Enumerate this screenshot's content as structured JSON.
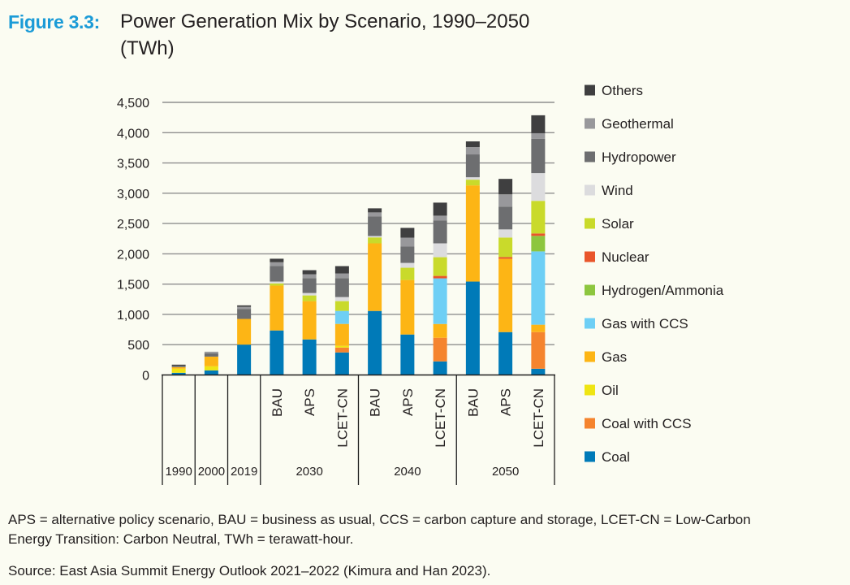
{
  "figure": {
    "label": "Figure 3.3:",
    "title": "Power Generation Mix by Scenario, 1990–2050",
    "unit": "(TWh)"
  },
  "chart_data": {
    "type": "bar",
    "stacked": true,
    "title": "Power Generation Mix by Scenario, 1990–2050 (TWh)",
    "xlabel": "",
    "ylabel": "TWh",
    "ylim": [
      0,
      4500
    ],
    "yticks": [
      0,
      500,
      1000,
      1500,
      2000,
      2500,
      3000,
      3500,
      4000,
      4500
    ],
    "ytick_labels": [
      "0",
      "500",
      "1,000",
      "1,500",
      "2,000",
      "2,500",
      "3,000",
      "3,500",
      "4,000",
      "4,500"
    ],
    "grid": true,
    "legend_position": "right",
    "categories": [
      {
        "year": "1990",
        "scenario": ""
      },
      {
        "year": "2000",
        "scenario": ""
      },
      {
        "year": "2019",
        "scenario": ""
      },
      {
        "year": "2030",
        "scenario": "BAU"
      },
      {
        "year": "2030",
        "scenario": "APS"
      },
      {
        "year": "2030",
        "scenario": "LCET-CN"
      },
      {
        "year": "2040",
        "scenario": "BAU"
      },
      {
        "year": "2040",
        "scenario": "APS"
      },
      {
        "year": "2040",
        "scenario": "LCET-CN"
      },
      {
        "year": "2050",
        "scenario": "BAU"
      },
      {
        "year": "2050",
        "scenario": "APS"
      },
      {
        "year": "2050",
        "scenario": "LCET-CN"
      }
    ],
    "year_groups": [
      {
        "label": "1990",
        "span": 1
      },
      {
        "label": "2000",
        "span": 1
      },
      {
        "label": "2019",
        "span": 1
      },
      {
        "label": "2030",
        "span": 3
      },
      {
        "label": "2040",
        "span": 3
      },
      {
        "label": "2050",
        "span": 3
      }
    ],
    "series": [
      {
        "name": "Coal",
        "color": "#007ab8",
        "values": [
          36,
          76,
          501,
          735,
          587,
          372,
          1057,
          668,
          224,
          1542,
          708,
          103
        ]
      },
      {
        "name": "Coal with CCS",
        "color": "#f5842e",
        "values": [
          0,
          0,
          0,
          0,
          0,
          81,
          0,
          0,
          390,
          0,
          0,
          605
        ]
      },
      {
        "name": "Oil",
        "color": "#efe513",
        "values": [
          67,
          67,
          0,
          0,
          0,
          27,
          0,
          0,
          0,
          0,
          0,
          0
        ]
      },
      {
        "name": "Gas",
        "color": "#fdb515",
        "values": [
          26,
          160,
          424,
          740,
          632,
          363,
          1116,
          900,
          228,
          1588,
          1211,
          122
        ]
      },
      {
        "name": "Gas with CCS",
        "color": "#6ecff5",
        "values": [
          0,
          0,
          0,
          0,
          0,
          215,
          0,
          0,
          753,
          0,
          0,
          1210
        ]
      },
      {
        "name": "Hydrogen/Ammonia",
        "color": "#8dc63f",
        "values": [
          0,
          0,
          0,
          0,
          0,
          0,
          0,
          0,
          0,
          0,
          0,
          256
        ]
      },
      {
        "name": "Nuclear",
        "color": "#e9552b",
        "values": [
          0,
          0,
          0,
          0,
          0,
          0,
          0,
          0,
          40,
          0,
          27,
          40
        ]
      },
      {
        "name": "Solar",
        "color": "#c9da2b",
        "values": [
          0,
          0,
          0,
          37,
          94,
          161,
          98,
          202,
          309,
          94,
          323,
          538
        ]
      },
      {
        "name": "Wind",
        "color": "#dcdcde",
        "values": [
          0,
          0,
          0,
          30,
          40,
          67,
          23,
          80,
          229,
          40,
          134,
          458
        ]
      },
      {
        "name": "Hydropower",
        "color": "#6d6e70",
        "values": [
          23,
          54,
          166,
          256,
          246,
          313,
          322,
          269,
          376,
          377,
          377,
          565
        ]
      },
      {
        "name": "Geothermal",
        "color": "#98989b",
        "values": [
          0,
          27,
          35,
          63,
          63,
          77,
          68,
          148,
          81,
          121,
          202,
          94
        ]
      },
      {
        "name": "Others",
        "color": "#3f3f40",
        "values": [
          18,
          0,
          23,
          58,
          68,
          121,
          67,
          161,
          215,
          94,
          255,
          296
        ]
      }
    ]
  },
  "notes": {
    "abbreviations_lines": [
      "APS = alternative policy scenario, BAU = business as usual, CCS = carbon capture and storage, LCET-CN = Low-Carbon",
      "Energy Transition: Carbon Neutral, TWh = terawatt-hour."
    ],
    "source": "Source: East Asia Summit Energy Outlook 2021–2022 (Kimura and Han 2023)."
  }
}
